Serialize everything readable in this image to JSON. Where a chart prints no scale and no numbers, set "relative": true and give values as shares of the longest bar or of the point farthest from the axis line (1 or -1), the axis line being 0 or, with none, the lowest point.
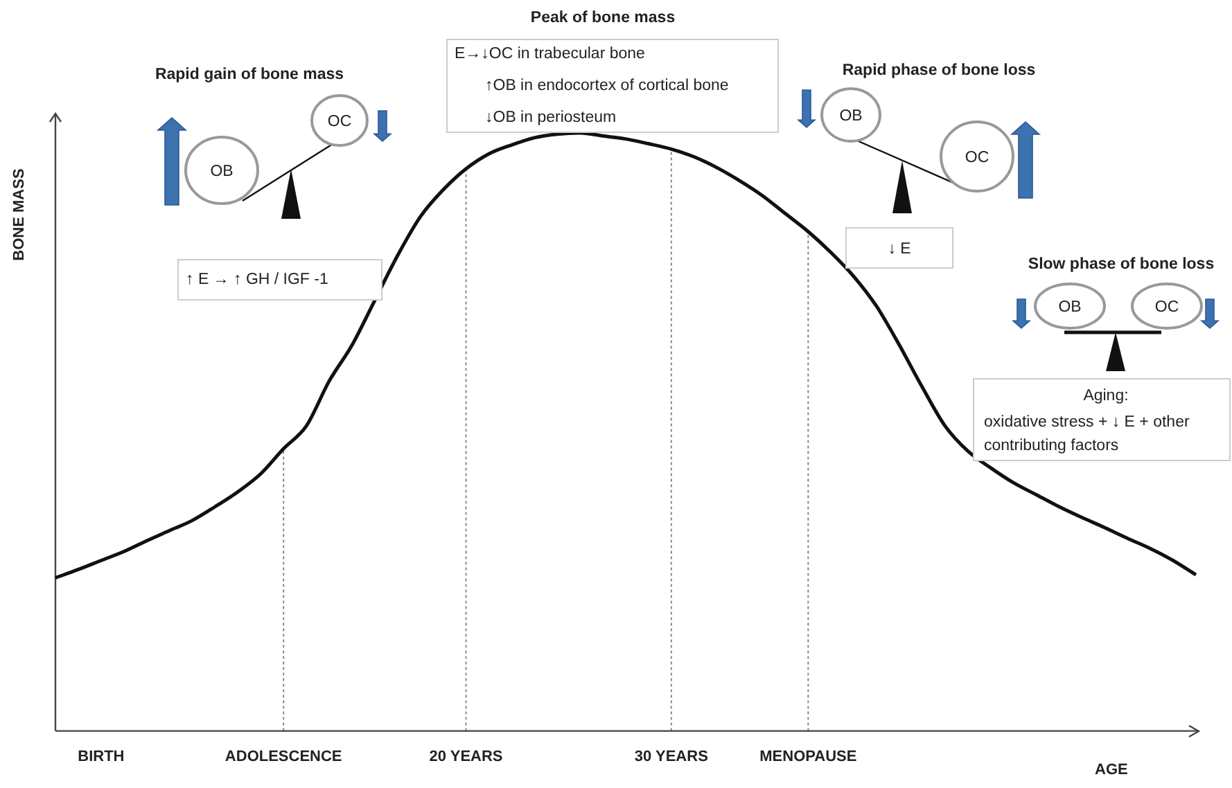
{
  "chart_data": {
    "type": "line",
    "xlabel": "AGE",
    "ylabel": "BONE MASS",
    "relative": true,
    "categories": [
      null,
      null,
      "BIRTH",
      null,
      null,
      null,
      null,
      null,
      null,
      null,
      "ADOLESCENCE",
      null,
      null,
      null,
      null,
      null,
      null,
      null,
      "20 YEARS",
      null,
      null,
      null,
      null,
      null,
      null,
      null,
      null,
      "30 YEARS",
      null,
      null,
      null,
      null,
      null,
      "MENOPAUSE",
      null,
      null,
      null,
      null,
      null,
      null,
      null,
      null,
      null,
      null,
      null,
      null,
      null,
      null,
      null,
      null,
      null
    ],
    "series": [
      {
        "color": "#111111",
        "values": [
          0.256,
          0.27,
          0.285,
          0.3,
          0.318,
          0.335,
          0.352,
          0.375,
          0.4,
          0.43,
          0.472,
          0.51,
          0.585,
          0.645,
          0.72,
          0.795,
          0.86,
          0.905,
          0.94,
          0.965,
          0.98,
          0.992,
          0.998,
          1,
          0.995,
          0.99,
          0.982,
          0.973,
          0.96,
          0.942,
          0.92,
          0.895,
          0.865,
          0.835,
          0.8,
          0.76,
          0.71,
          0.645,
          0.575,
          0.51,
          0.468,
          0.44,
          0.415,
          0.395,
          0.375,
          0.357,
          0.34,
          0.322,
          0.305,
          0.285,
          0.261
        ]
      }
    ],
    "ref_lines": [
      {
        "axis": "x",
        "value": "ADOLESCENCE",
        "color": "#888888",
        "line_style": "dotted"
      },
      {
        "axis": "x",
        "value": "20 YEARS",
        "color": "#888888",
        "line_style": "dotted"
      },
      {
        "axis": "x",
        "value": "30 YEARS",
        "color": "#888888",
        "line_style": "dotted"
      },
      {
        "axis": "x",
        "value": "MENOPAUSE",
        "color": "#888888",
        "line_style": "dotted"
      }
    ],
    "annotations": [
      "Rapid gain of bone mass",
      "OB",
      "OC",
      "↑ E → ↑ GH / IGF -1",
      "Peak of bone mass",
      "E→↓OC in trabecular bone",
      "↑OB in endocortex of cortical bone",
      "↓OB in periosteum",
      "Rapid phase of bone loss",
      "OB",
      "OC",
      "↓ E",
      "Slow phase of bone loss",
      "OB",
      "OC",
      "Aging:",
      "oxidative stress + ↓ E + other contributing factors"
    ]
  }
}
